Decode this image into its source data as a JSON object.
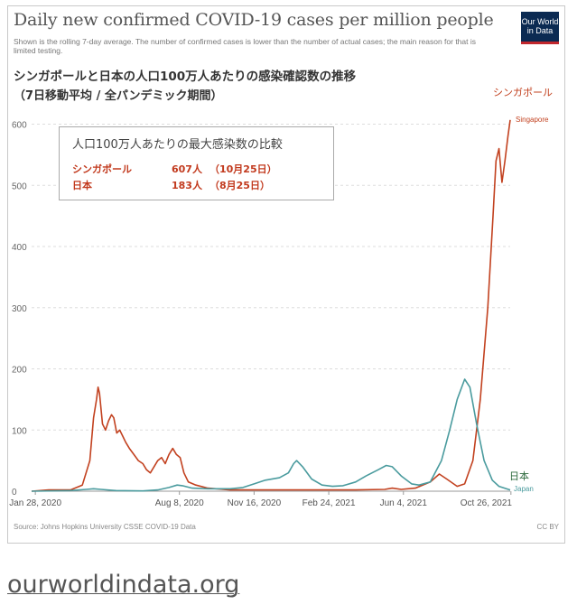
{
  "header": {
    "title": "Daily new confirmed COVID-19 cases per million people",
    "subtitle": "Shown is the rolling 7-day average. The number of confirmed cases is lower than the number of actual cases; the main reason for that is limited testing.",
    "ja_title": "シンガポールと日本の人口100万人あたりの感染確認数の推移",
    "ja_subtitle": "（7日移動平均 / 全パンデミック期間）",
    "logo_line1": "Our World",
    "logo_line2": "in Data"
  },
  "compare_box": {
    "heading": "人口100万人あたりの最大感染数の比較",
    "rows": [
      {
        "country": "シンガポール",
        "value": "607人",
        "date": "（10月25日）"
      },
      {
        "country": "日本",
        "value": "183人",
        "date": "（8月25日）"
      }
    ]
  },
  "footer": {
    "source": "Source: Johns Hopkins University CSSE COVID-19 Data",
    "license": "CC BY",
    "site_link": "ourworldindata.org"
  },
  "chart_data": {
    "type": "line",
    "ylim": [
      0,
      620
    ],
    "y_ticks": [
      "0",
      "100",
      "200",
      "300",
      "400",
      "500",
      "600"
    ],
    "x_ticks": [
      "Jan 28, 2020",
      "Aug 8, 2020",
      "Nov 16, 2020",
      "Feb 24, 2021",
      "Jun 4, 2021",
      "Oct 26, 2021"
    ],
    "grid": true,
    "colors": {
      "singapore": "#c2411f",
      "japan": "#4a9b9e"
    },
    "series": [
      {
        "name": "Singapore",
        "label_ja": "シンガポール",
        "label_en": "Singapore",
        "points": [
          [
            "2020-01-23",
            0
          ],
          [
            "2020-02-15",
            2
          ],
          [
            "2020-03-15",
            2
          ],
          [
            "2020-03-31",
            10
          ],
          [
            "2020-04-10",
            50
          ],
          [
            "2020-04-15",
            120
          ],
          [
            "2020-04-19",
            150
          ],
          [
            "2020-04-21",
            170
          ],
          [
            "2020-04-23",
            160
          ],
          [
            "2020-04-27",
            110
          ],
          [
            "2020-05-01",
            100
          ],
          [
            "2020-05-05",
            115
          ],
          [
            "2020-05-09",
            125
          ],
          [
            "2020-05-12",
            120
          ],
          [
            "2020-05-16",
            95
          ],
          [
            "2020-05-20",
            100
          ],
          [
            "2020-05-24",
            90
          ],
          [
            "2020-05-28",
            80
          ],
          [
            "2020-06-02",
            70
          ],
          [
            "2020-06-08",
            60
          ],
          [
            "2020-06-14",
            50
          ],
          [
            "2020-06-20",
            45
          ],
          [
            "2020-06-25",
            35
          ],
          [
            "2020-06-30",
            30
          ],
          [
            "2020-07-05",
            40
          ],
          [
            "2020-07-10",
            50
          ],
          [
            "2020-07-15",
            55
          ],
          [
            "2020-07-20",
            45
          ],
          [
            "2020-07-25",
            60
          ],
          [
            "2020-07-30",
            70
          ],
          [
            "2020-08-04",
            60
          ],
          [
            "2020-08-09",
            55
          ],
          [
            "2020-08-14",
            30
          ],
          [
            "2020-08-20",
            15
          ],
          [
            "2020-08-30",
            10
          ],
          [
            "2020-09-15",
            5
          ],
          [
            "2020-10-15",
            2
          ],
          [
            "2021-04-01",
            2
          ],
          [
            "2021-05-10",
            3
          ],
          [
            "2021-05-20",
            5
          ],
          [
            "2021-06-01",
            3
          ],
          [
            "2021-06-20",
            5
          ],
          [
            "2021-07-10",
            15
          ],
          [
            "2021-07-22",
            28
          ],
          [
            "2021-08-01",
            20
          ],
          [
            "2021-08-15",
            8
          ],
          [
            "2021-08-25",
            12
          ],
          [
            "2021-09-05",
            50
          ],
          [
            "2021-09-15",
            150
          ],
          [
            "2021-09-25",
            300
          ],
          [
            "2021-10-02",
            450
          ],
          [
            "2021-10-06",
            540
          ],
          [
            "2021-10-10",
            560
          ],
          [
            "2021-10-14",
            505
          ],
          [
            "2021-10-18",
            540
          ],
          [
            "2021-10-22",
            580
          ],
          [
            "2021-10-25",
            607
          ]
        ]
      },
      {
        "name": "Japan",
        "label_ja": "日本",
        "label_en": "Japan",
        "points": [
          [
            "2020-01-23",
            0
          ],
          [
            "2020-03-15",
            1
          ],
          [
            "2020-04-05",
            3
          ],
          [
            "2020-04-15",
            4
          ],
          [
            "2020-04-25",
            3
          ],
          [
            "2020-05-15",
            1
          ],
          [
            "2020-06-20",
            0.5
          ],
          [
            "2020-07-10",
            2
          ],
          [
            "2020-07-25",
            6
          ],
          [
            "2020-08-05",
            10
          ],
          [
            "2020-08-12",
            9
          ],
          [
            "2020-08-25",
            5
          ],
          [
            "2020-09-15",
            4
          ],
          [
            "2020-10-15",
            4
          ],
          [
            "2020-11-01",
            6
          ],
          [
            "2020-11-16",
            12
          ],
          [
            "2020-12-01",
            18
          ],
          [
            "2020-12-20",
            22
          ],
          [
            "2021-01-01",
            30
          ],
          [
            "2021-01-08",
            45
          ],
          [
            "2021-01-12",
            50
          ],
          [
            "2021-01-20",
            40
          ],
          [
            "2021-02-01",
            20
          ],
          [
            "2021-02-15",
            10
          ],
          [
            "2021-03-01",
            8
          ],
          [
            "2021-03-15",
            9
          ],
          [
            "2021-04-01",
            15
          ],
          [
            "2021-04-15",
            25
          ],
          [
            "2021-05-01",
            35
          ],
          [
            "2021-05-12",
            42
          ],
          [
            "2021-05-20",
            40
          ],
          [
            "2021-06-01",
            25
          ],
          [
            "2021-06-15",
            12
          ],
          [
            "2021-06-25",
            10
          ],
          [
            "2021-07-10",
            15
          ],
          [
            "2021-07-25",
            50
          ],
          [
            "2021-08-05",
            100
          ],
          [
            "2021-08-15",
            150
          ],
          [
            "2021-08-25",
            183
          ],
          [
            "2021-09-01",
            170
          ],
          [
            "2021-09-10",
            110
          ],
          [
            "2021-09-20",
            50
          ],
          [
            "2021-10-01",
            18
          ],
          [
            "2021-10-10",
            8
          ],
          [
            "2021-10-25",
            2
          ]
        ]
      }
    ]
  }
}
